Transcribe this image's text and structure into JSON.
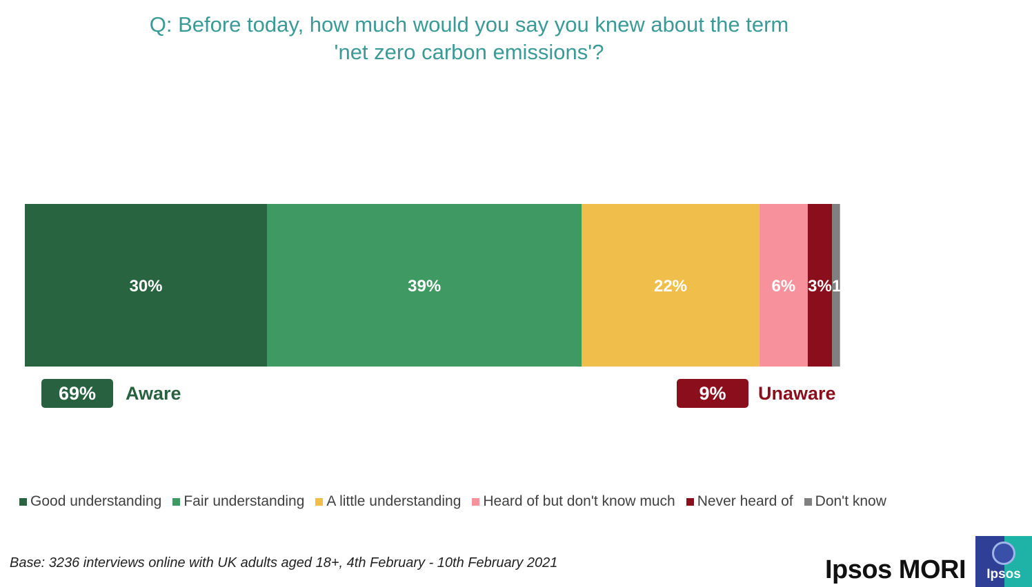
{
  "title_lines": [
    "Q: Before today, how much would you say you knew about the term",
    "'net zero carbon emissions'?"
  ],
  "colors": {
    "title": "#3a9a96",
    "aware": "#27613f",
    "unaware": "#8b0e1c",
    "legend_text": "#404040"
  },
  "chart_data": {
    "type": "bar",
    "orientation": "horizontal",
    "stacked": true,
    "categories": [
      ""
    ],
    "xlim": [
      0,
      100
    ],
    "series": [
      {
        "name": "Good understanding",
        "values": [
          30
        ],
        "label": "30%",
        "color": "#27643f"
      },
      {
        "name": "Fair understanding",
        "values": [
          39
        ],
        "label": "39%",
        "color": "#3f9962"
      },
      {
        "name": "A little understanding",
        "values": [
          22
        ],
        "label": "22%",
        "color": "#f0be4b"
      },
      {
        "name": "Heard of but don't know much",
        "values": [
          6
        ],
        "label": "6%",
        "color": "#f7919b"
      },
      {
        "name": "Never heard of",
        "values": [
          3
        ],
        "label": "3%",
        "color": "#8b0e1c"
      },
      {
        "name": "Don't know",
        "values": [
          1
        ],
        "label": "1",
        "color": "#808080"
      }
    ],
    "legend": "bottom",
    "grid": false
  },
  "summary": {
    "aware": {
      "value": "69%",
      "label": "Aware"
    },
    "unaware": {
      "value": "9%",
      "label": "Unaware"
    }
  },
  "footnote": "Base: 3236 interviews online with UK adults aged 18+, 4th February - 10th February 2021",
  "brand": {
    "name": "Ipsos MORI",
    "logo_text": "Ipsos",
    "logo_colors": [
      "#2f3f95",
      "#1fb2a6"
    ]
  }
}
